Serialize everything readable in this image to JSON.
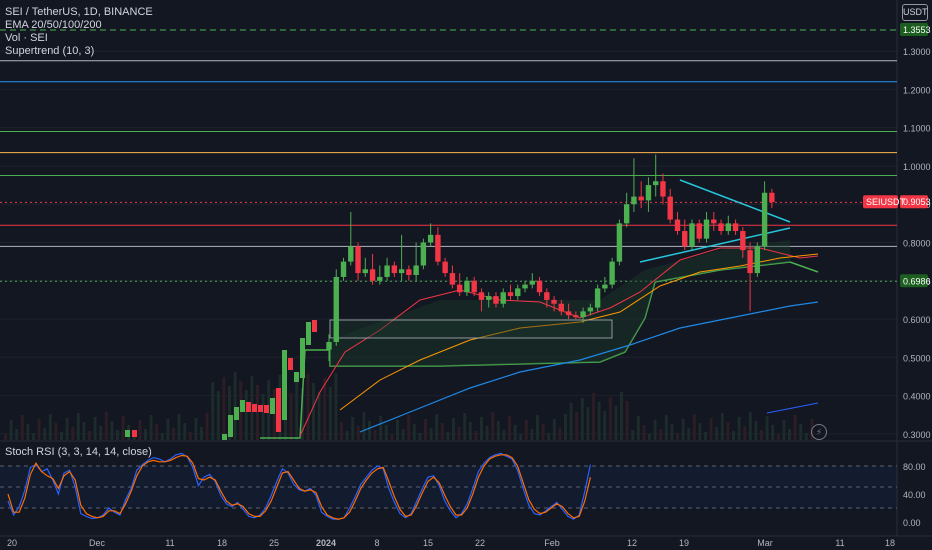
{
  "legend": {
    "line1": "SEI / TetherUS, 1D, BINANCE",
    "line2": "EMA 20/50/100/200",
    "line3": "Vol · SEI",
    "line4": "Supertrend (10, 3)"
  },
  "rsi_legend": "Stoch RSI (3, 3, 14, 14, close)",
  "currency": "USDT",
  "price_badges": {
    "top": "1.3553",
    "symbol_label": "SEIUSDT",
    "last_price": "0.9053",
    "support": "0.6986"
  },
  "colors": {
    "background": "#131722",
    "up": "#089981",
    "up_candle": "#4caf50",
    "down": "#f23645",
    "ema20": "#f23645",
    "ema50": "#ff9800",
    "ema100": "#1e88e5",
    "stoch_k": "#2962ff",
    "stoch_d": "#ff6d00"
  },
  "icons": {
    "alert": "lightning-bolt-icon",
    "currency": "currency-badge"
  },
  "chart_data": {
    "type": "candlestick",
    "price_axis": {
      "ticks": [
        "1.3000",
        "1.2000",
        "1.1000",
        "1.0000",
        "0.9000",
        "0.8000",
        "0.7000",
        "0.6000",
        "0.5000",
        "0.4000",
        "0.3000"
      ],
      "range": [
        0.27,
        1.4
      ]
    },
    "time_axis": {
      "ticks": [
        "20",
        "Dec",
        "11",
        "18",
        "25",
        "2024",
        "8",
        "15",
        "22",
        "Feb",
        "12",
        "19",
        "Mar",
        "11",
        "18"
      ]
    },
    "horizontal_levels": [
      {
        "price": 1.3553,
        "color": "#4caf50",
        "style": "dashed"
      },
      {
        "price": 1.275,
        "color": "#b2b5be",
        "style": "solid"
      },
      {
        "price": 1.22,
        "color": "#2196f3",
        "style": "solid"
      },
      {
        "price": 1.09,
        "color": "#4caf50",
        "style": "solid"
      },
      {
        "price": 1.035,
        "color": "#ffb74d",
        "style": "solid"
      },
      {
        "price": 0.975,
        "color": "#4caf50",
        "style": "solid"
      },
      {
        "price": 0.905,
        "color": "#f23645",
        "style": "dotted"
      },
      {
        "price": 0.845,
        "color": "#f23645",
        "style": "solid"
      },
      {
        "price": 0.79,
        "color": "#b2b5be",
        "style": "solid"
      },
      {
        "price": 0.6986,
        "color": "#4caf50",
        "style": "dotted"
      }
    ],
    "candles": [
      {
        "t": "Jan 01",
        "o": 0.52,
        "h": 0.56,
        "l": 0.49,
        "c": 0.54
      },
      {
        "t": "Jan 02",
        "o": 0.54,
        "h": 0.73,
        "l": 0.53,
        "c": 0.71
      },
      {
        "t": "Jan 03",
        "o": 0.71,
        "h": 0.76,
        "l": 0.7,
        "c": 0.75
      },
      {
        "t": "Jan 04",
        "o": 0.75,
        "h": 0.88,
        "l": 0.74,
        "c": 0.79
      },
      {
        "t": "Jan 05",
        "o": 0.79,
        "h": 0.8,
        "l": 0.7,
        "c": 0.72
      },
      {
        "t": "Jan 06",
        "o": 0.72,
        "h": 0.76,
        "l": 0.71,
        "c": 0.73
      },
      {
        "t": "Jan 07",
        "o": 0.73,
        "h": 0.77,
        "l": 0.69,
        "c": 0.7
      },
      {
        "t": "Jan 08",
        "o": 0.7,
        "h": 0.74,
        "l": 0.69,
        "c": 0.71
      },
      {
        "t": "Jan 09",
        "o": 0.71,
        "h": 0.76,
        "l": 0.7,
        "c": 0.74
      },
      {
        "t": "Jan 10",
        "o": 0.74,
        "h": 0.75,
        "l": 0.71,
        "c": 0.72
      },
      {
        "t": "Jan 11",
        "o": 0.72,
        "h": 0.82,
        "l": 0.7,
        "c": 0.73
      },
      {
        "t": "Jan 12",
        "o": 0.73,
        "h": 0.74,
        "l": 0.7,
        "c": 0.715
      },
      {
        "t": "Jan 13",
        "o": 0.715,
        "h": 0.8,
        "l": 0.7,
        "c": 0.74
      },
      {
        "t": "Jan 14",
        "o": 0.74,
        "h": 0.81,
        "l": 0.73,
        "c": 0.8
      },
      {
        "t": "Jan 15",
        "o": 0.8,
        "h": 0.85,
        "l": 0.79,
        "c": 0.82
      },
      {
        "t": "Jan 16",
        "o": 0.82,
        "h": 0.84,
        "l": 0.74,
        "c": 0.75
      },
      {
        "t": "Jan 17",
        "o": 0.75,
        "h": 0.76,
        "l": 0.71,
        "c": 0.72
      },
      {
        "t": "Jan 18",
        "o": 0.72,
        "h": 0.74,
        "l": 0.68,
        "c": 0.69
      },
      {
        "t": "Jan 19",
        "o": 0.69,
        "h": 0.72,
        "l": 0.66,
        "c": 0.67
      },
      {
        "t": "Jan 20",
        "o": 0.67,
        "h": 0.71,
        "l": 0.66,
        "c": 0.7
      },
      {
        "t": "Jan 21",
        "o": 0.7,
        "h": 0.71,
        "l": 0.66,
        "c": 0.67
      },
      {
        "t": "Jan 22",
        "o": 0.67,
        "h": 0.68,
        "l": 0.62,
        "c": 0.65
      },
      {
        "t": "Jan 23",
        "o": 0.65,
        "h": 0.67,
        "l": 0.63,
        "c": 0.66
      },
      {
        "t": "Jan 24",
        "o": 0.66,
        "h": 0.67,
        "l": 0.63,
        "c": 0.64
      },
      {
        "t": "Jan 25",
        "o": 0.64,
        "h": 0.68,
        "l": 0.63,
        "c": 0.67
      },
      {
        "t": "Jan 26",
        "o": 0.67,
        "h": 0.69,
        "l": 0.65,
        "c": 0.66
      },
      {
        "t": "Jan 27",
        "o": 0.66,
        "h": 0.69,
        "l": 0.65,
        "c": 0.68
      },
      {
        "t": "Jan 28",
        "o": 0.68,
        "h": 0.7,
        "l": 0.67,
        "c": 0.69
      },
      {
        "t": "Jan 29",
        "o": 0.69,
        "h": 0.72,
        "l": 0.68,
        "c": 0.7
      },
      {
        "t": "Jan 30",
        "o": 0.7,
        "h": 0.71,
        "l": 0.66,
        "c": 0.67
      },
      {
        "t": "Jan 31",
        "o": 0.67,
        "h": 0.68,
        "l": 0.63,
        "c": 0.65
      },
      {
        "t": "Feb 01",
        "o": 0.65,
        "h": 0.66,
        "l": 0.62,
        "c": 0.64
      },
      {
        "t": "Feb 02",
        "o": 0.64,
        "h": 0.65,
        "l": 0.61,
        "c": 0.62
      },
      {
        "t": "Feb 03",
        "o": 0.62,
        "h": 0.64,
        "l": 0.6,
        "c": 0.61
      },
      {
        "t": "Feb 04",
        "o": 0.61,
        "h": 0.62,
        "l": 0.6,
        "c": 0.605
      },
      {
        "t": "Feb 05",
        "o": 0.605,
        "h": 0.63,
        "l": 0.59,
        "c": 0.62
      },
      {
        "t": "Feb 06",
        "o": 0.62,
        "h": 0.64,
        "l": 0.61,
        "c": 0.63
      },
      {
        "t": "Feb 07",
        "o": 0.63,
        "h": 0.69,
        "l": 0.62,
        "c": 0.68
      },
      {
        "t": "Feb 08",
        "o": 0.68,
        "h": 0.71,
        "l": 0.67,
        "c": 0.69
      },
      {
        "t": "Feb 09",
        "o": 0.69,
        "h": 0.76,
        "l": 0.68,
        "c": 0.75
      },
      {
        "t": "Feb 10",
        "o": 0.75,
        "h": 0.86,
        "l": 0.74,
        "c": 0.85
      },
      {
        "t": "Feb 11",
        "o": 0.85,
        "h": 0.93,
        "l": 0.84,
        "c": 0.9
      },
      {
        "t": "Feb 12",
        "o": 0.9,
        "h": 1.02,
        "l": 0.88,
        "c": 0.92
      },
      {
        "t": "Feb 13",
        "o": 0.92,
        "h": 0.96,
        "l": 0.89,
        "c": 0.91
      },
      {
        "t": "Feb 14",
        "o": 0.91,
        "h": 0.97,
        "l": 0.88,
        "c": 0.95
      },
      {
        "t": "Feb 15",
        "o": 0.95,
        "h": 1.03,
        "l": 0.92,
        "c": 0.96
      },
      {
        "t": "Feb 16",
        "o": 0.96,
        "h": 0.98,
        "l": 0.9,
        "c": 0.92
      },
      {
        "t": "Feb 17",
        "o": 0.92,
        "h": 0.94,
        "l": 0.85,
        "c": 0.86
      },
      {
        "t": "Feb 18",
        "o": 0.86,
        "h": 0.88,
        "l": 0.82,
        "c": 0.83
      },
      {
        "t": "Feb 19",
        "o": 0.83,
        "h": 0.86,
        "l": 0.78,
        "c": 0.79
      },
      {
        "t": "Feb 20",
        "o": 0.79,
        "h": 0.86,
        "l": 0.78,
        "c": 0.85
      },
      {
        "t": "Feb 21",
        "o": 0.85,
        "h": 0.86,
        "l": 0.8,
        "c": 0.81
      },
      {
        "t": "Feb 22",
        "o": 0.81,
        "h": 0.88,
        "l": 0.8,
        "c": 0.86
      },
      {
        "t": "Feb 23",
        "o": 0.86,
        "h": 0.88,
        "l": 0.83,
        "c": 0.85
      },
      {
        "t": "Feb 24",
        "o": 0.85,
        "h": 0.86,
        "l": 0.82,
        "c": 0.83
      },
      {
        "t": "Feb 25",
        "o": 0.83,
        "h": 0.87,
        "l": 0.82,
        "c": 0.85
      },
      {
        "t": "Feb 26",
        "o": 0.85,
        "h": 0.86,
        "l": 0.82,
        "c": 0.83
      },
      {
        "t": "Feb 27",
        "o": 0.83,
        "h": 0.84,
        "l": 0.76,
        "c": 0.78
      },
      {
        "t": "Feb 28",
        "o": 0.78,
        "h": 0.8,
        "l": 0.62,
        "c": 0.72
      },
      {
        "t": "Feb 29",
        "o": 0.72,
        "h": 0.8,
        "l": 0.71,
        "c": 0.79
      },
      {
        "t": "Mar 01",
        "o": 0.79,
        "h": 0.96,
        "l": 0.78,
        "c": 0.93
      },
      {
        "t": "Mar 02",
        "o": 0.93,
        "h": 0.94,
        "l": 0.89,
        "c": 0.9053
      }
    ],
    "stoch_rsi": {
      "ticks": [
        "80.00",
        "40.00",
        "0.00"
      ],
      "levels": [
        80,
        50,
        20
      ],
      "k": [
        30,
        10,
        22,
        45,
        78,
        82,
        72,
        76,
        60,
        40,
        70,
        74,
        50,
        12,
        8,
        5,
        6,
        10,
        20,
        14,
        10,
        32,
        48,
        74,
        82,
        88,
        92,
        90,
        86,
        90,
        96,
        98,
        93,
        78,
        52,
        64,
        68,
        58,
        38,
        26,
        22,
        28,
        18,
        8,
        6,
        10,
        20,
        38,
        58,
        76,
        70,
        54,
        46,
        44,
        48,
        38,
        14,
        8,
        4,
        4,
        6,
        20,
        36,
        54,
        64,
        74,
        80,
        76,
        48,
        28,
        12,
        6,
        12,
        30,
        48,
        64,
        66,
        52,
        30,
        16,
        6,
        12,
        26,
        48,
        72,
        84,
        92,
        96,
        98,
        94,
        90,
        74,
        48,
        24,
        12,
        10,
        16,
        22,
        28,
        18,
        8,
        4,
        10,
        44,
        82
      ],
      "d": [
        40,
        14,
        14,
        34,
        68,
        84,
        72,
        66,
        62,
        48,
        66,
        72,
        60,
        24,
        12,
        8,
        6,
        8,
        16,
        16,
        12,
        26,
        44,
        66,
        80,
        86,
        88,
        86,
        86,
        88,
        92,
        95,
        94,
        84,
        62,
        60,
        64,
        60,
        44,
        30,
        24,
        26,
        22,
        12,
        8,
        8,
        16,
        30,
        50,
        70,
        72,
        60,
        48,
        44,
        46,
        42,
        22,
        10,
        6,
        4,
        6,
        14,
        30,
        48,
        60,
        70,
        76,
        78,
        58,
        36,
        18,
        8,
        10,
        24,
        42,
        58,
        64,
        56,
        38,
        22,
        10,
        10,
        20,
        40,
        64,
        80,
        90,
        94,
        96,
        96,
        92,
        80,
        56,
        32,
        18,
        12,
        14,
        20,
        26,
        22,
        12,
        6,
        8,
        30,
        64
      ]
    }
  }
}
